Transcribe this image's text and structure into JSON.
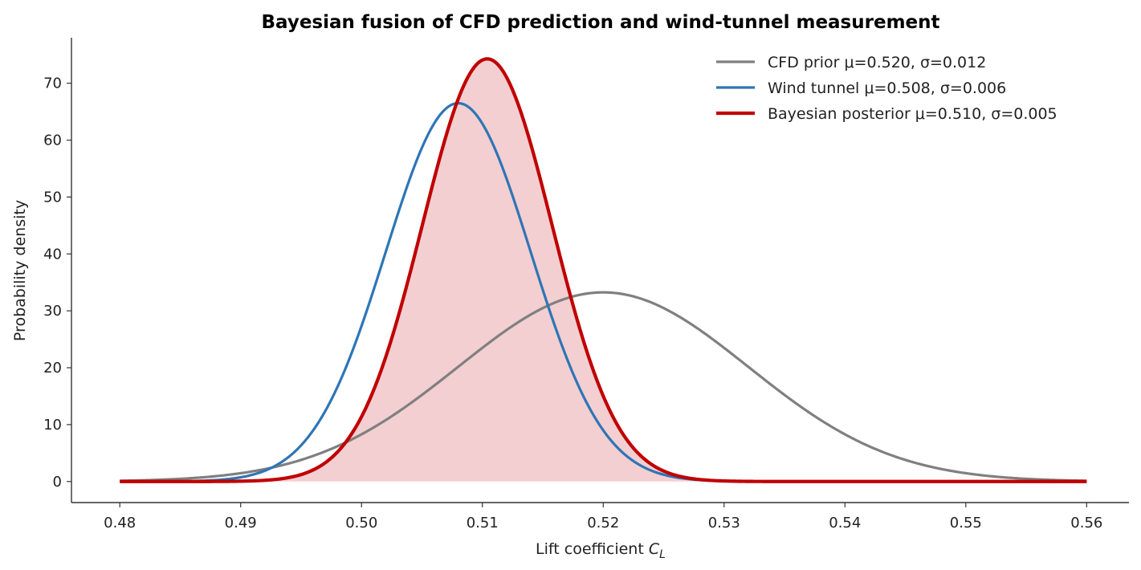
{
  "chart_data": {
    "type": "line",
    "title": "Bayesian fusion of CFD prediction and wind-tunnel measurement",
    "xlabel": "Lift coefficient",
    "xlabel_symbol": "C",
    "xlabel_subscript": "L",
    "ylabel": "Probability density",
    "xlim": [
      0.476,
      0.5635
    ],
    "ylim": [
      -3.7,
      78
    ],
    "xticks": [
      0.48,
      0.49,
      0.5,
      0.51,
      0.52,
      0.53,
      0.54,
      0.55,
      0.56
    ],
    "xtick_labels": [
      "0.48",
      "0.49",
      "0.50",
      "0.51",
      "0.52",
      "0.53",
      "0.54",
      "0.55",
      "0.56"
    ],
    "yticks": [
      0,
      10,
      20,
      30,
      40,
      50,
      60,
      70
    ],
    "ytick_labels": [
      "0",
      "10",
      "20",
      "30",
      "40",
      "50",
      "60",
      "70"
    ],
    "x_range": [
      0.48,
      0.56
    ],
    "grid": false,
    "legend_position": "top-right",
    "series": [
      {
        "name": "CFD prior  μ=0.520, σ=0.012",
        "distribution": "normal",
        "mu": 0.52,
        "sigma": 0.012,
        "color": "#808080",
        "line_width": 3.2,
        "filled": false
      },
      {
        "name": "Wind tunnel  μ=0.508, σ=0.006",
        "distribution": "normal",
        "mu": 0.508,
        "sigma": 0.006,
        "color": "#2e75b6",
        "line_width": 3.2,
        "filled": false
      },
      {
        "name": "Bayesian posterior  μ=0.510, σ=0.005",
        "distribution": "normal",
        "mu": 0.5104,
        "sigma": 0.00537,
        "color": "#c00000",
        "line_width": 4.2,
        "filled": true,
        "fill_color": "#e8a0a4",
        "fill_opacity": 0.5
      }
    ]
  }
}
